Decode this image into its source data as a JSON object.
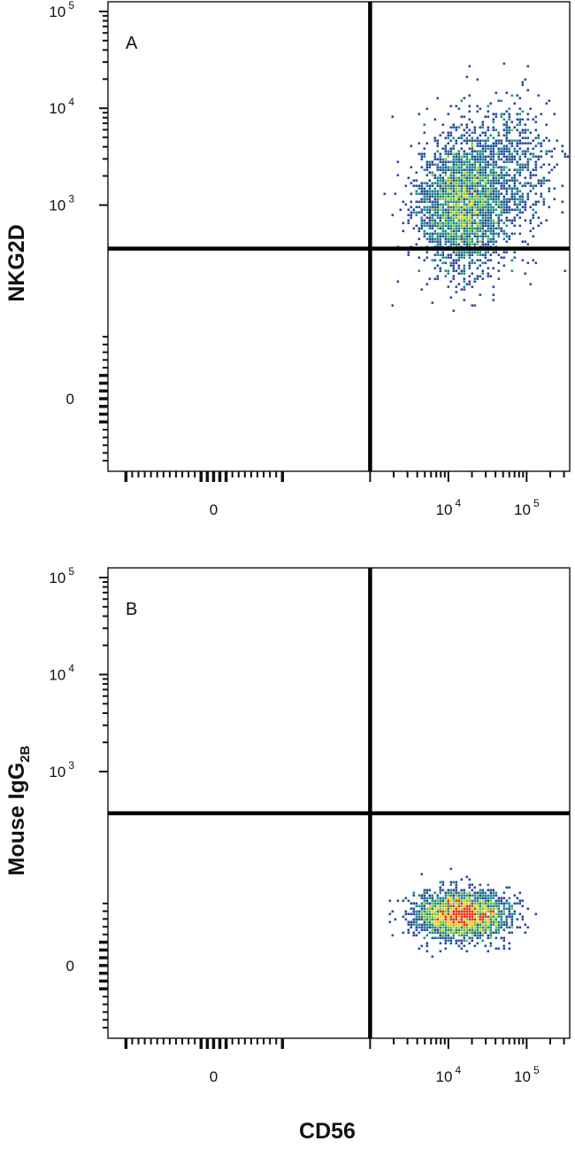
{
  "chart_data": [
    {
      "type": "scatter",
      "panel_label": "A",
      "ylabel": "NKG2D",
      "ylabel_sub": "",
      "xlabel": "",
      "x_scale": "biexponential",
      "y_scale": "biexponential",
      "x_ticks": [
        {
          "value": 0,
          "base": "0",
          "exp": ""
        },
        {
          "value": 10000,
          "base": "10",
          "exp": "4"
        },
        {
          "value": 100000,
          "base": "10",
          "exp": "5"
        }
      ],
      "y_ticks": [
        {
          "value": 100000,
          "base": "10",
          "exp": "5"
        },
        {
          "value": 10000,
          "base": "10",
          "exp": "4"
        },
        {
          "value": 1000,
          "base": "10",
          "exp": "3"
        },
        {
          "value": 0,
          "base": "0",
          "exp": ""
        }
      ],
      "quadrant_gate": {
        "x": 1000,
        "y": 400
      },
      "populations": [
        {
          "x_center": 15000,
          "y_center": 1000,
          "density": "high"
        },
        {
          "x_center": 60000,
          "y_center": 2500,
          "density": "low"
        }
      ],
      "grid": false
    },
    {
      "type": "scatter",
      "panel_label": "B",
      "ylabel": "Mouse IgG",
      "ylabel_sub": "2B",
      "xlabel": "CD56",
      "x_scale": "biexponential",
      "y_scale": "biexponential",
      "x_ticks": [
        {
          "value": 0,
          "base": "0",
          "exp": ""
        },
        {
          "value": 10000,
          "base": "10",
          "exp": "4"
        },
        {
          "value": 100000,
          "base": "10",
          "exp": "5"
        }
      ],
      "y_ticks": [
        {
          "value": 100000,
          "base": "10",
          "exp": "5"
        },
        {
          "value": 10000,
          "base": "10",
          "exp": "4"
        },
        {
          "value": 1000,
          "base": "10",
          "exp": "3"
        },
        {
          "value": 0,
          "base": "0",
          "exp": ""
        }
      ],
      "quadrant_gate": {
        "x": 1000,
        "y": 400
      },
      "populations": [
        {
          "x_center": 15000,
          "y_center": 150,
          "density": "high"
        }
      ],
      "grid": false
    }
  ],
  "colors": {
    "density_low": "#2c4a9e",
    "density_mid": "#1f8f8a",
    "density_midhigh": "#7ec242",
    "density_high": "#e8d22a",
    "density_max": "#e5331c",
    "axis": "#111111",
    "gate": "#000000"
  }
}
